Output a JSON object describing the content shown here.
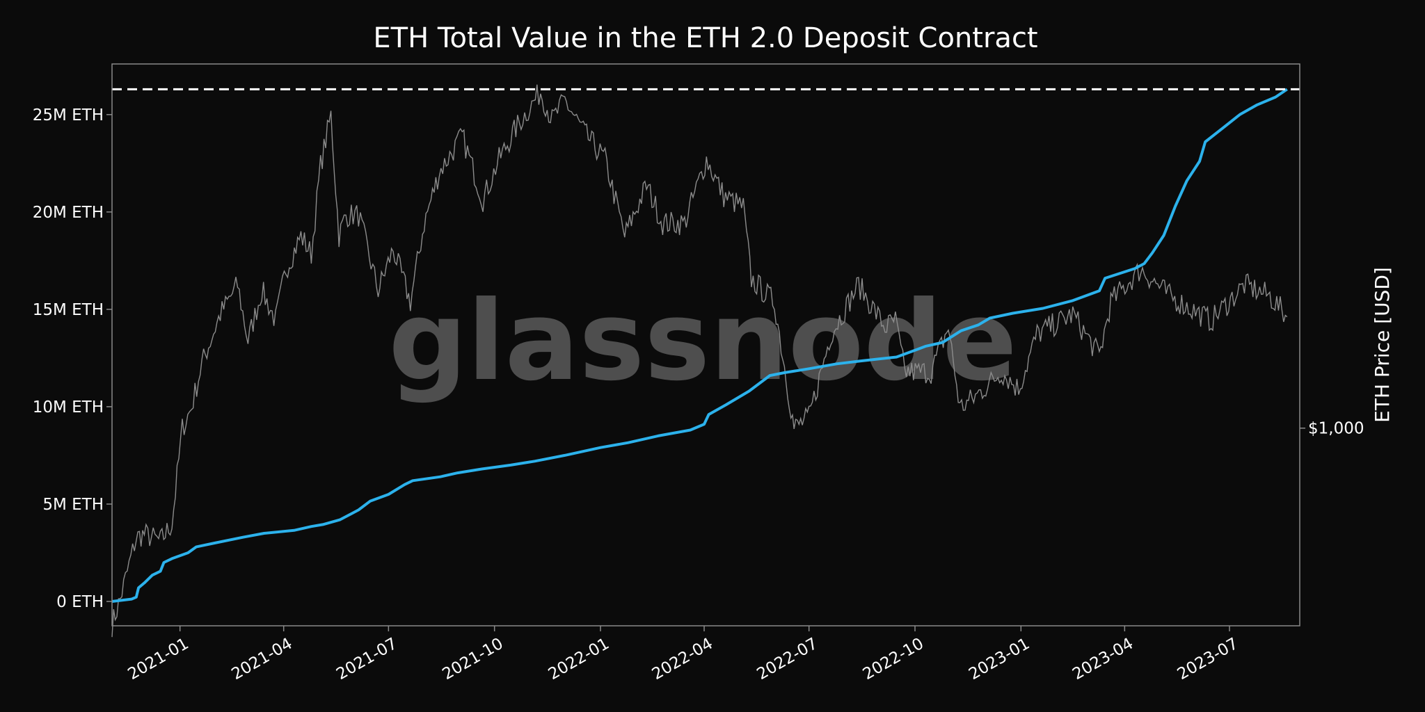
{
  "chart_data": {
    "type": "line",
    "title": "ETH Total Value in the ETH 2.0 Deposit Contract",
    "watermark": "glassnode",
    "x_tick_labels": [
      "2021-01",
      "2021-04",
      "2021-07",
      "2021-10",
      "2022-01",
      "2022-04",
      "2022-07",
      "2022-10",
      "2023-01",
      "2023-04",
      "2023-07"
    ],
    "x_range": [
      "2020-11-03",
      "2023-08-31"
    ],
    "y_left": {
      "tick_values": [
        0,
        5,
        10,
        15,
        20,
        25
      ],
      "tick_labels": [
        "0 ETH",
        "5M ETH",
        "10M ETH",
        "15M ETH",
        "20M ETH",
        "25M ETH"
      ],
      "unit": "M ETH",
      "range": [
        -1.25,
        27.6
      ],
      "reference_line": 26.3
    },
    "y_right": {
      "label": "ETH Price [USD]",
      "tick_values": [
        1000
      ],
      "tick_labels": [
        "$1,000"
      ],
      "scale": "log",
      "range": [
        398,
        5460
      ]
    },
    "colors": {
      "background": "#0b0b0b",
      "deposit": "#2cb2ec",
      "price": "#8c8c8c",
      "text": "#ffffff",
      "axes": "#8a8a8a"
    },
    "series": [
      {
        "axis": "left",
        "color": "#2cb2ec",
        "points": [
          [
            "2020-11-03",
            0.0
          ],
          [
            "2020-11-20",
            0.12
          ],
          [
            "2020-11-24",
            0.22
          ],
          [
            "2020-11-26",
            0.7
          ],
          [
            "2020-12-01",
            0.95
          ],
          [
            "2020-12-08",
            1.35
          ],
          [
            "2020-12-15",
            1.55
          ],
          [
            "2020-12-18",
            2.0
          ],
          [
            "2020-12-25",
            2.2
          ],
          [
            "2021-01-08",
            2.5
          ],
          [
            "2021-01-15",
            2.8
          ],
          [
            "2021-01-31",
            3.0
          ],
          [
            "2021-02-25",
            3.3
          ],
          [
            "2021-03-15",
            3.5
          ],
          [
            "2021-04-10",
            3.65
          ],
          [
            "2021-04-25",
            3.85
          ],
          [
            "2021-05-05",
            3.95
          ],
          [
            "2021-05-20",
            4.2
          ],
          [
            "2021-06-05",
            4.7
          ],
          [
            "2021-06-15",
            5.15
          ],
          [
            "2021-07-01",
            5.5
          ],
          [
            "2021-07-15",
            6.0
          ],
          [
            "2021-07-22",
            6.2
          ],
          [
            "2021-08-15",
            6.4
          ],
          [
            "2021-08-30",
            6.6
          ],
          [
            "2021-09-20",
            6.8
          ],
          [
            "2021-10-15",
            7.0
          ],
          [
            "2021-11-05",
            7.2
          ],
          [
            "2021-12-01",
            7.5
          ],
          [
            "2022-01-01",
            7.9
          ],
          [
            "2022-01-25",
            8.15
          ],
          [
            "2022-02-20",
            8.5
          ],
          [
            "2022-03-20",
            8.8
          ],
          [
            "2022-04-01",
            9.1
          ],
          [
            "2022-04-05",
            9.6
          ],
          [
            "2022-04-20",
            10.1
          ],
          [
            "2022-05-10",
            10.8
          ],
          [
            "2022-05-28",
            11.6
          ],
          [
            "2022-06-10",
            11.75
          ],
          [
            "2022-07-01",
            11.95
          ],
          [
            "2022-07-25",
            12.2
          ],
          [
            "2022-08-15",
            12.35
          ],
          [
            "2022-09-15",
            12.55
          ],
          [
            "2022-10-01",
            12.9
          ],
          [
            "2022-10-10",
            13.1
          ],
          [
            "2022-10-25",
            13.3
          ],
          [
            "2022-11-10",
            13.9
          ],
          [
            "2022-11-25",
            14.2
          ],
          [
            "2022-12-05",
            14.55
          ],
          [
            "2022-12-25",
            14.8
          ],
          [
            "2023-01-20",
            15.05
          ],
          [
            "2023-02-15",
            15.45
          ],
          [
            "2023-03-10",
            15.95
          ],
          [
            "2023-03-15",
            16.6
          ],
          [
            "2023-04-10",
            17.1
          ],
          [
            "2023-04-18",
            17.35
          ],
          [
            "2023-04-25",
            17.9
          ],
          [
            "2023-05-05",
            18.8
          ],
          [
            "2023-05-15",
            20.3
          ],
          [
            "2023-05-25",
            21.6
          ],
          [
            "2023-06-05",
            22.6
          ],
          [
            "2023-06-10",
            23.6
          ],
          [
            "2023-06-25",
            24.3
          ],
          [
            "2023-07-10",
            25.0
          ],
          [
            "2023-07-25",
            25.5
          ],
          [
            "2023-08-10",
            25.9
          ],
          [
            "2023-08-20",
            26.3
          ]
        ]
      },
      {
        "axis": "right",
        "color": "#8c8c8c",
        "points": [
          [
            "2020-11-03",
            400
          ],
          [
            "2020-11-10",
            450
          ],
          [
            "2020-11-24",
            600
          ],
          [
            "2020-12-01",
            610
          ],
          [
            "2020-12-15",
            590
          ],
          [
            "2020-12-25",
            640
          ],
          [
            "2021-01-03",
            1000
          ],
          [
            "2021-01-11",
            1100
          ],
          [
            "2021-01-20",
            1350
          ],
          [
            "2021-02-05",
            1700
          ],
          [
            "2021-02-20",
            1950
          ],
          [
            "2021-03-01",
            1500
          ],
          [
            "2021-03-13",
            1900
          ],
          [
            "2021-03-25",
            1650
          ],
          [
            "2021-04-03",
            2100
          ],
          [
            "2021-04-16",
            2450
          ],
          [
            "2021-04-25",
            2250
          ],
          [
            "2021-05-03",
            3400
          ],
          [
            "2021-05-12",
            4300
          ],
          [
            "2021-05-19",
            2450
          ],
          [
            "2021-05-25",
            2700
          ],
          [
            "2021-06-05",
            2700
          ],
          [
            "2021-06-22",
            1900
          ],
          [
            "2021-07-05",
            2300
          ],
          [
            "2021-07-20",
            1800
          ],
          [
            "2021-08-01",
            2600
          ],
          [
            "2021-08-14",
            3300
          ],
          [
            "2021-09-03",
            3900
          ],
          [
            "2021-09-21",
            2900
          ],
          [
            "2021-10-05",
            3500
          ],
          [
            "2021-10-21",
            4100
          ],
          [
            "2021-11-10",
            4800
          ],
          [
            "2021-11-20",
            4200
          ],
          [
            "2021-12-01",
            4600
          ],
          [
            "2021-12-20",
            3900
          ],
          [
            "2022-01-05",
            3500
          ],
          [
            "2022-01-22",
            2450
          ],
          [
            "2022-02-10",
            3100
          ],
          [
            "2022-02-24",
            2600
          ],
          [
            "2022-03-15",
            2600
          ],
          [
            "2022-04-03",
            3500
          ],
          [
            "2022-04-18",
            2950
          ],
          [
            "2022-05-05",
            2800
          ],
          [
            "2022-05-12",
            2000
          ],
          [
            "2022-06-01",
            1800
          ],
          [
            "2022-06-14",
            1150
          ],
          [
            "2022-06-18",
            1000
          ],
          [
            "2022-07-01",
            1050
          ],
          [
            "2022-07-20",
            1550
          ],
          [
            "2022-08-13",
            1950
          ],
          [
            "2022-09-05",
            1600
          ],
          [
            "2022-09-14",
            1650
          ],
          [
            "2022-09-22",
            1300
          ],
          [
            "2022-10-15",
            1300
          ],
          [
            "2022-10-30",
            1600
          ],
          [
            "2022-11-09",
            1100
          ],
          [
            "2022-11-21",
            1150
          ],
          [
            "2022-12-15",
            1300
          ],
          [
            "2022-12-30",
            1200
          ],
          [
            "2023-01-15",
            1550
          ],
          [
            "2023-02-15",
            1700
          ],
          [
            "2023-03-10",
            1400
          ],
          [
            "2023-03-20",
            1800
          ],
          [
            "2023-04-15",
            2100
          ],
          [
            "2023-05-10",
            1850
          ],
          [
            "2023-06-15",
            1650
          ],
          [
            "2023-07-14",
            1950
          ],
          [
            "2023-08-05",
            1850
          ],
          [
            "2023-08-20",
            1680
          ]
        ]
      }
    ]
  }
}
